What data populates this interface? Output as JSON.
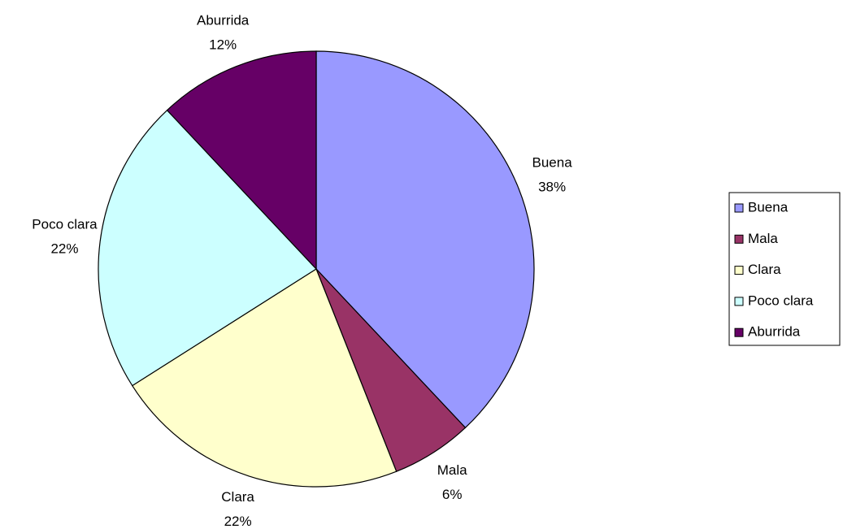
{
  "chart_data": {
    "type": "pie",
    "categories": [
      "Buena",
      "Mala",
      "Clara",
      "Poco clara",
      "Aburrida"
    ],
    "values": [
      38,
      6,
      22,
      22,
      12
    ],
    "value_labels": [
      "38%",
      "6%",
      "22%",
      "22%",
      "12%"
    ],
    "colors": [
      "#9999ff",
      "#993366",
      "#ffffcc",
      "#ccffff",
      "#660066"
    ],
    "legend": "right"
  }
}
